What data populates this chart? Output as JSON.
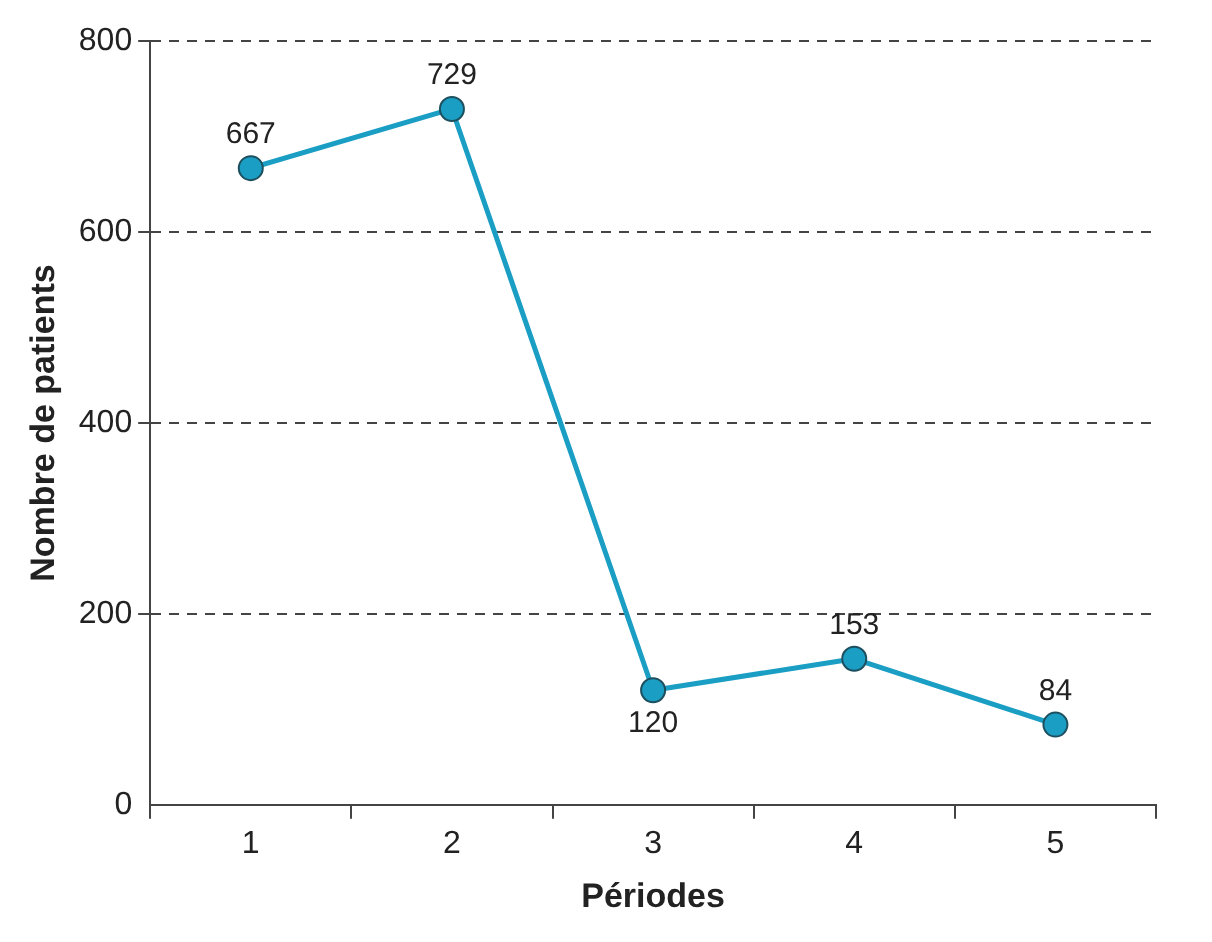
{
  "chart_data": {
    "type": "line",
    "xlabel": "Périodes",
    "ylabel": "Nombre de patients",
    "categories": [
      "1",
      "2",
      "3",
      "4",
      "5"
    ],
    "series": [
      {
        "color": "#1a9ec4",
        "values": [
          667,
          729,
          120,
          153,
          84
        ]
      }
    ],
    "ylim": [
      0,
      800
    ],
    "yticks": [
      0,
      200,
      400,
      600,
      800
    ],
    "grid": "y",
    "legend": false,
    "marker": "circle",
    "line_style": "solid",
    "data_labels": true
  }
}
